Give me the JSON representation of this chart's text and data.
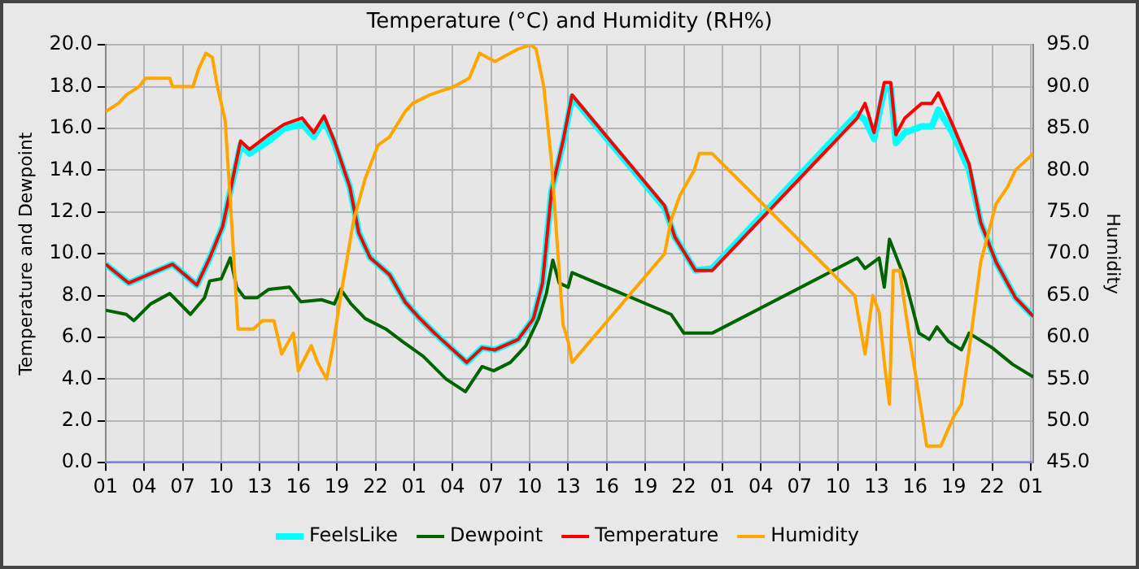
{
  "chart_data": {
    "type": "line",
    "title": "Temperature (°C) and Humidity (RH%)",
    "ylabel": "Temperature and Dewpoint",
    "y2label": "Humidity",
    "xlim": [
      "--01-01T01:00",
      "--01-04T01:12"
    ],
    "xticks": [
      {
        "value": "--01-01T01:00",
        "label": "01"
      },
      {
        "value": "--01-01T04:00",
        "label": "04"
      },
      {
        "value": "--01-01T07:00",
        "label": "07"
      },
      {
        "value": "--01-01T10:00",
        "label": "10"
      },
      {
        "value": "--01-01T13:00",
        "label": "13"
      },
      {
        "value": "--01-01T16:00",
        "label": "16"
      },
      {
        "value": "--01-01T19:00",
        "label": "19"
      },
      {
        "value": "--01-01T22:00",
        "label": "22"
      },
      {
        "value": "--01-02T01:00",
        "label": "01"
      },
      {
        "value": "--01-02T04:00",
        "label": "04"
      },
      {
        "value": "--01-02T07:00",
        "label": "07"
      },
      {
        "value": "--01-02T10:00",
        "label": "10"
      },
      {
        "value": "--01-02T13:00",
        "label": "13"
      },
      {
        "value": "--01-02T16:00",
        "label": "16"
      },
      {
        "value": "--01-02T19:00",
        "label": "19"
      },
      {
        "value": "--01-02T22:00",
        "label": "22"
      },
      {
        "value": "--01-03T01:00",
        "label": "01"
      },
      {
        "value": "--01-03T04:00",
        "label": "04"
      },
      {
        "value": "--01-03T07:00",
        "label": "07"
      },
      {
        "value": "--01-03T10:00",
        "label": "10"
      },
      {
        "value": "--01-03T13:00",
        "label": "13"
      },
      {
        "value": "--01-03T16:00",
        "label": "16"
      },
      {
        "value": "--01-03T19:00",
        "label": "19"
      },
      {
        "value": "--01-03T22:00",
        "label": "22"
      },
      {
        "value": "--01-04T01:00",
        "label": "01"
      }
    ],
    "ylim": [
      0,
      20
    ],
    "yticks": [
      {
        "value": 0,
        "label": "0.0"
      },
      {
        "value": 2,
        "label": "2.0"
      },
      {
        "value": 4,
        "label": "4.0"
      },
      {
        "value": 6,
        "label": "6.0"
      },
      {
        "value": 8,
        "label": "8.0"
      },
      {
        "value": 10,
        "label": "10.0"
      },
      {
        "value": 12,
        "label": "12.0"
      },
      {
        "value": 14,
        "label": "14.0"
      },
      {
        "value": 16,
        "label": "16.0"
      },
      {
        "value": 18,
        "label": "18.0"
      },
      {
        "value": 20,
        "label": "20.0"
      }
    ],
    "y2lim": [
      45,
      95
    ],
    "y2ticks": [
      {
        "value": 45,
        "label": "45.0"
      },
      {
        "value": 50,
        "label": "50.0"
      },
      {
        "value": 55,
        "label": "55.0"
      },
      {
        "value": 60,
        "label": "60.0"
      },
      {
        "value": 65,
        "label": "65.0"
      },
      {
        "value": 70,
        "label": "70.0"
      },
      {
        "value": 75,
        "label": "75.0"
      },
      {
        "value": 80,
        "label": "80.0"
      },
      {
        "value": 85,
        "label": "85.0"
      },
      {
        "value": 90,
        "label": "90.0"
      },
      {
        "value": 95,
        "label": "95.0"
      }
    ],
    "grid": true,
    "legend": "bottom",
    "marker": "none",
    "line_style": "solid",
    "series": [
      {
        "color": "#8080f0",
        "x": [
          "--01-01T01:00",
          "--01-04T01:12"
        ],
        "values": [
          0,
          0
        ]
      },
      {
        "name": "FeelsLike",
        "color": "#00ffff",
        "x": [
          "--01-01T01:00",
          "--01-01T02:48",
          "--01-01T06:12",
          "--01-01T08:06",
          "--01-01T09:06",
          "--01-01T10:06",
          "--01-01T10:42",
          "--01-01T11:30",
          "--01-01T12:12",
          "--01-01T13:42",
          "--01-01T14:54",
          "--01-01T16:18",
          "--01-01T17:12",
          "--01-01T18:00",
          "--01-01T18:48",
          "--01-01T20:00",
          "--01-01T20:42",
          "--01-01T21:36",
          "--01-01T23:06",
          "--01-02T00:18",
          "--01-02T01:18",
          "--01-02T02:36",
          "--01-02T05:06",
          "--01-02T06:18",
          "--01-02T07:18",
          "--01-02T09:06",
          "--01-02T10:18",
          "--01-02T11:00",
          "--01-02T11:42",
          "--01-02T12:36",
          "--01-02T13:18",
          "--01-02T20:30",
          "--01-02T21:18",
          "--01-02T22:54",
          "--01-03T00:12",
          "--01-03T11:30",
          "--01-03T12:06",
          "--01-03T12:48",
          "--01-03T13:36",
          "--01-03T14:06",
          "--01-03T14:30",
          "--01-03T15:12",
          "--01-03T16:30",
          "--01-03T17:18",
          "--01-03T17:48",
          "--01-03T18:54",
          "--01-03T20:12",
          "--01-03T21:06",
          "--01-03T22:18",
          "--01-03T23:48",
          "--01-04T01:12"
        ],
        "values": [
          9.5,
          8.6,
          9.5,
          8.5,
          9.8,
          11.3,
          13.0,
          15.2,
          14.8,
          15.4,
          16.0,
          16.2,
          15.6,
          16.4,
          15.3,
          13.2,
          11.0,
          9.8,
          9.0,
          7.7,
          7.0,
          6.2,
          4.8,
          5.5,
          5.4,
          5.9,
          6.9,
          8.6,
          13.0,
          15.3,
          17.5,
          12.2,
          10.8,
          9.2,
          9.3,
          16.7,
          16.4,
          15.5,
          17.9,
          17.9,
          15.3,
          15.8,
          16.1,
          16.1,
          16.9,
          15.8,
          14.0,
          11.5,
          9.6,
          7.9,
          7.0
        ]
      },
      {
        "name": "Dewpoint",
        "color": "#006400",
        "x": [
          "--01-01T01:00",
          "--01-01T02:36",
          "--01-01T03:12",
          "--01-01T04:30",
          "--01-01T06:00",
          "--01-01T07:36",
          "--01-01T08:42",
          "--01-01T09:06",
          "--01-01T10:00",
          "--01-01T10:42",
          "--01-01T11:12",
          "--01-01T11:48",
          "--01-01T12:48",
          "--01-01T13:42",
          "--01-01T15:18",
          "--01-01T16:12",
          "--01-01T17:48",
          "--01-01T18:48",
          "--01-01T19:18",
          "--01-01T20:06",
          "--01-01T21:12",
          "--01-01T22:48",
          "--01-02T00:06",
          "--01-02T01:42",
          "--01-02T03:30",
          "--01-02T05:00",
          "--01-02T06:18",
          "--01-02T07:12",
          "--01-02T08:30",
          "--01-02T09:42",
          "--01-02T10:42",
          "--01-02T11:18",
          "--01-02T11:48",
          "--01-02T12:18",
          "--01-02T13:00",
          "--01-02T13:18",
          "--01-02T21:00",
          "--01-02T22:00",
          "--01-03T00:12",
          "--01-03T11:30",
          "--01-03T12:06",
          "--01-03T13:12",
          "--01-03T13:36",
          "--01-03T14:00",
          "--01-03T15:12",
          "--01-03T16:18",
          "--01-03T17:06",
          "--01-03T17:42",
          "--01-03T18:36",
          "--01-03T19:36",
          "--01-03T20:12",
          "--01-03T22:00",
          "--01-03T23:36",
          "--01-04T01:12"
        ],
        "values": [
          7.3,
          7.1,
          6.8,
          7.6,
          8.1,
          7.1,
          7.9,
          8.7,
          8.8,
          9.8,
          8.4,
          7.9,
          7.9,
          8.3,
          8.4,
          7.7,
          7.8,
          7.6,
          8.3,
          7.6,
          6.9,
          6.4,
          5.8,
          5.1,
          4.0,
          3.4,
          4.6,
          4.4,
          4.8,
          5.6,
          6.9,
          8.1,
          9.7,
          8.6,
          8.4,
          9.1,
          7.1,
          6.2,
          6.2,
          9.8,
          9.3,
          9.8,
          8.4,
          10.7,
          8.8,
          6.2,
          5.9,
          6.5,
          5.8,
          5.4,
          6.2,
          5.5,
          4.7,
          4.1
        ]
      },
      {
        "name": "Temperature",
        "color": "#ff0000",
        "x": [
          "--01-01T01:00",
          "--01-01T02:48",
          "--01-01T06:12",
          "--01-01T08:06",
          "--01-01T09:06",
          "--01-01T10:06",
          "--01-01T10:42",
          "--01-01T11:30",
          "--01-01T12:12",
          "--01-01T13:42",
          "--01-01T14:54",
          "--01-01T16:18",
          "--01-01T17:12",
          "--01-01T18:00",
          "--01-01T18:48",
          "--01-01T20:00",
          "--01-01T20:42",
          "--01-01T21:36",
          "--01-01T23:06",
          "--01-02T00:18",
          "--01-02T01:18",
          "--01-02T02:36",
          "--01-02T05:06",
          "--01-02T06:18",
          "--01-02T07:18",
          "--01-02T09:06",
          "--01-02T10:18",
          "--01-02T11:00",
          "--01-02T11:42",
          "--01-02T12:36",
          "--01-02T13:18",
          "--01-02T20:30",
          "--01-02T21:18",
          "--01-02T22:54",
          "--01-03T00:12",
          "--01-03T11:30",
          "--01-03T12:06",
          "--01-03T12:48",
          "--01-03T13:36",
          "--01-03T14:06",
          "--01-03T14:30",
          "--01-03T15:12",
          "--01-03T16:30",
          "--01-03T17:18",
          "--01-03T17:48",
          "--01-03T18:54",
          "--01-03T20:12",
          "--01-03T21:06",
          "--01-03T22:18",
          "--01-03T23:48",
          "--01-04T01:12"
        ],
        "values": [
          9.5,
          8.6,
          9.5,
          8.5,
          9.8,
          11.3,
          13.0,
          15.4,
          15.0,
          15.7,
          16.2,
          16.5,
          15.8,
          16.6,
          15.4,
          13.2,
          11.0,
          9.8,
          9.0,
          7.7,
          7.0,
          6.2,
          4.8,
          5.5,
          5.4,
          5.9,
          6.9,
          8.6,
          13.0,
          15.4,
          17.6,
          12.3,
          10.8,
          9.2,
          9.2,
          16.5,
          17.2,
          15.8,
          18.2,
          18.2,
          15.7,
          16.5,
          17.2,
          17.2,
          17.7,
          16.2,
          14.3,
          11.5,
          9.6,
          7.9,
          7.0
        ]
      },
      {
        "name": "Humidity",
        "color": "#ffa500",
        "axis": "y2",
        "x": [
          "--01-01T01:00",
          "--01-01T02:00",
          "--01-01T02:36",
          "--01-01T03:36",
          "--01-01T04:06",
          "--01-01T06:00",
          "--01-01T06:12",
          "--01-01T07:48",
          "--01-01T08:12",
          "--01-01T08:48",
          "--01-01T09:18",
          "--01-01T09:42",
          "--01-01T10:18",
          "--01-01T10:48",
          "--01-01T11:18",
          "--01-01T12:30",
          "--01-01T13:12",
          "--01-01T14:06",
          "--01-01T14:42",
          "--01-01T15:36",
          "--01-01T16:00",
          "--01-01T17:00",
          "--01-01T17:30",
          "--01-01T18:12",
          "--01-01T18:42",
          "--01-01T19:18",
          "--01-01T20:18",
          "--01-01T21:12",
          "--01-01T22:12",
          "--01-01T23:06",
          "--01-02T00:18",
          "--01-02T00:54",
          "--01-02T02:12",
          "--01-02T04:06",
          "--01-02T05:18",
          "--01-02T06:06",
          "--01-02T07:18",
          "--01-02T09:06",
          "--01-02T10:06",
          "--01-02T10:30",
          "--01-02T11:06",
          "--01-02T11:42",
          "--01-02T12:12",
          "--01-02T12:36",
          "--01-02T13:00",
          "--01-02T13:18",
          "--01-02T20:30",
          "--01-02T21:00",
          "--01-02T21:42",
          "--01-02T22:48",
          "--01-02T23:12",
          "--01-03T00:12",
          "--01-03T11:18",
          "--01-03T11:42",
          "--01-03T12:06",
          "--01-03T12:42",
          "--01-03T13:12",
          "--01-03T13:36",
          "--01-03T14:00",
          "--01-03T14:18",
          "--01-03T14:48",
          "--01-03T15:30",
          "--01-03T16:18",
          "--01-03T16:54",
          "--01-03T18:00",
          "--01-03T19:00",
          "--01-03T19:36",
          "--01-03T20:12",
          "--01-03T21:06",
          "--01-03T22:18",
          "--01-03T23:12",
          "--01-03T23:48",
          "--01-04T01:12"
        ],
        "values": [
          87,
          88,
          89,
          90,
          91,
          91,
          90,
          90,
          92,
          94,
          93.5,
          90,
          86,
          74,
          61,
          61,
          62,
          62,
          58,
          60.5,
          56,
          59,
          57,
          55,
          59,
          65,
          74,
          79,
          83,
          84,
          87,
          88,
          89,
          90,
          91,
          94,
          93,
          94.5,
          95,
          94.5,
          90,
          81,
          70,
          61.5,
          59.5,
          57,
          70,
          74,
          77,
          80,
          82,
          82,
          65,
          61.5,
          58,
          65,
          63,
          57,
          52,
          68,
          68,
          60.5,
          53,
          47,
          47,
          50.5,
          52,
          58.5,
          69,
          76,
          78,
          80,
          82
        ]
      }
    ]
  }
}
